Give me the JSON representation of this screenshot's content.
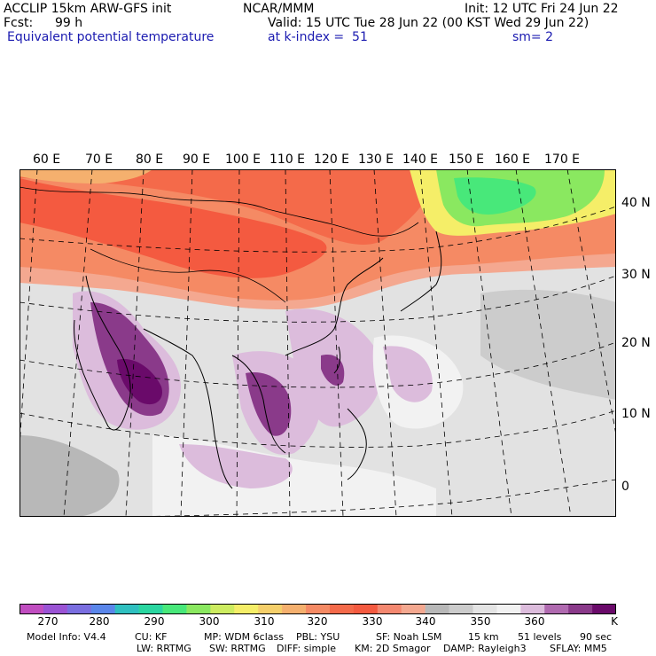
{
  "header": {
    "model": "ACCLIP 15km ARW-GFS init",
    "org": "NCAR/MMM",
    "init": "Init: 12 UTC Fri 24 Jun 22",
    "fcst_label": "Fcst:",
    "fcst_value": "99 h",
    "valid": "Valid: 15 UTC Tue 28 Jun 22 (00 KST Wed 29 Jun 22)",
    "field": "Equivalent potential temperature",
    "level": "at k-index =  51",
    "smooth": "sm= 2"
  },
  "map": {
    "lon_labels": [
      "60 E",
      "70 E",
      "80 E",
      "90 E",
      "100 E",
      "110 E",
      "120 E",
      "130 E",
      "140 E",
      "150 E",
      "160 E",
      "170 E"
    ],
    "lat_labels": [
      "40 N",
      "30 N",
      "20 N",
      "10 N",
      "0"
    ]
  },
  "colorbar": {
    "colors": [
      "#c04dc0",
      "#9a53d4",
      "#7a6ee0",
      "#5a86ea",
      "#2fc0c0",
      "#2ad6a0",
      "#48e87a",
      "#8ae860",
      "#cdec60",
      "#f5ee68",
      "#f5cf6a",
      "#f5b06e",
      "#f58a64",
      "#f46a4a",
      "#f45a40",
      "#f48870",
      "#f4a890",
      "#b8b8b8",
      "#cccccc",
      "#e4e4e4",
      "#f2f2f2",
      "#dcbcdc",
      "#b06ab0",
      "#8a3a8a",
      "#6a0a6a"
    ],
    "labels": [
      "270",
      "280",
      "290",
      "300",
      "310",
      "320",
      "330",
      "340",
      "350",
      "360"
    ],
    "unit": "K"
  },
  "footer": {
    "line1": [
      "Model Info: V4.4",
      "CU: KF",
      "MP: WDM 6class",
      "PBL: YSU",
      "SF: Noah LSM",
      "15 km",
      "51 levels",
      "90 sec"
    ],
    "line2": [
      "LW: RRTMG",
      "SW: RRTMG",
      "DIFF: simple",
      "KM: 2D Smagor",
      "DAMP: Rayleigh3",
      "SFLAY: MM5"
    ]
  }
}
